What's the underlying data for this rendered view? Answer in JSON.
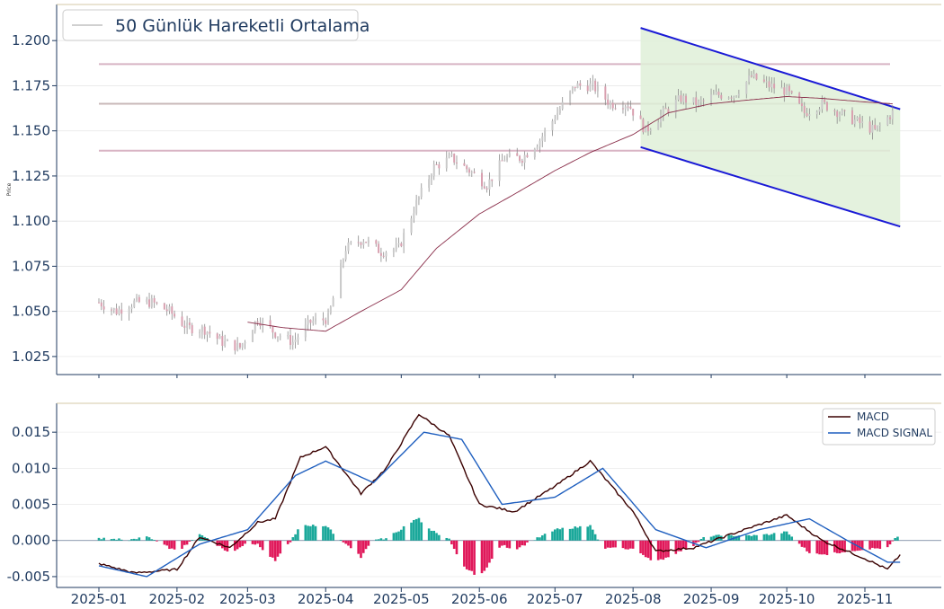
{
  "chart_data": [
    {
      "type": "candlestick",
      "ylabel": "Price",
      "ylim": [
        1.015,
        1.22
      ],
      "yticks": [
        "1.025",
        "1.050",
        "1.075",
        "1.100",
        "1.125",
        "1.150",
        "1.175",
        "1.200"
      ],
      "legend": {
        "label": "50 Günlük Hareketli Ortalama",
        "placement": "top-left"
      },
      "horizontal_levels": [
        1.187,
        1.165,
        1.139
      ],
      "channel": {
        "upper": {
          "start": [
            "2025-08-04",
            1.207
          ],
          "end": [
            "2025-11-15",
            1.162
          ]
        },
        "lower": {
          "start": [
            "2025-08-04",
            1.141
          ],
          "end": [
            "2025-11-15",
            1.097
          ]
        }
      },
      "price_knots": [
        [
          "2025-01-01",
          1.055
        ],
        [
          "2025-01-08",
          1.05
        ],
        [
          "2025-01-15",
          1.055
        ],
        [
          "2025-01-22",
          1.055
        ],
        [
          "2025-01-29",
          1.05
        ],
        [
          "2025-02-05",
          1.041
        ],
        [
          "2025-02-12",
          1.04
        ],
        [
          "2025-02-19",
          1.033
        ],
        [
          "2025-02-26",
          1.03
        ],
        [
          "2025-03-05",
          1.046
        ],
        [
          "2025-03-12",
          1.038
        ],
        [
          "2025-03-19",
          1.033
        ],
        [
          "2025-03-26",
          1.044
        ],
        [
          "2025-04-02",
          1.046
        ],
        [
          "2025-04-09",
          1.085
        ],
        [
          "2025-04-16",
          1.09
        ],
        [
          "2025-04-23",
          1.083
        ],
        [
          "2025-04-30",
          1.085
        ],
        [
          "2025-05-07",
          1.11
        ],
        [
          "2025-05-14",
          1.13
        ],
        [
          "2025-05-21",
          1.135
        ],
        [
          "2025-05-28",
          1.128
        ],
        [
          "2025-06-04",
          1.12
        ],
        [
          "2025-06-11",
          1.135
        ],
        [
          "2025-06-18",
          1.135
        ],
        [
          "2025-06-25",
          1.145
        ],
        [
          "2025-07-02",
          1.16
        ],
        [
          "2025-07-09",
          1.175
        ],
        [
          "2025-07-16",
          1.175
        ],
        [
          "2025-07-23",
          1.165
        ],
        [
          "2025-07-30",
          1.165
        ],
        [
          "2025-08-06",
          1.15
        ],
        [
          "2025-08-13",
          1.16
        ],
        [
          "2025-08-20",
          1.168
        ],
        [
          "2025-08-27",
          1.165
        ],
        [
          "2025-09-03",
          1.17
        ],
        [
          "2025-09-10",
          1.17
        ],
        [
          "2025-09-17",
          1.18
        ],
        [
          "2025-09-24",
          1.175
        ],
        [
          "2025-10-01",
          1.172
        ],
        [
          "2025-10-08",
          1.16
        ],
        [
          "2025-10-15",
          1.165
        ],
        [
          "2025-10-22",
          1.16
        ],
        [
          "2025-10-29",
          1.155
        ],
        [
          "2025-11-05",
          1.15
        ],
        [
          "2025-11-12",
          1.16
        ]
      ],
      "sma50_knots": [
        [
          "2025-03-01",
          1.044
        ],
        [
          "2025-03-15",
          1.041
        ],
        [
          "2025-04-01",
          1.039
        ],
        [
          "2025-04-15",
          1.05
        ],
        [
          "2025-05-01",
          1.062
        ],
        [
          "2025-05-15",
          1.085
        ],
        [
          "2025-06-01",
          1.104
        ],
        [
          "2025-06-15",
          1.115
        ],
        [
          "2025-07-01",
          1.128
        ],
        [
          "2025-07-15",
          1.138
        ],
        [
          "2025-08-01",
          1.148
        ],
        [
          "2025-08-15",
          1.16
        ],
        [
          "2025-09-01",
          1.165
        ],
        [
          "2025-09-15",
          1.167
        ],
        [
          "2025-10-01",
          1.169
        ],
        [
          "2025-10-15",
          1.168
        ],
        [
          "2025-11-01",
          1.166
        ],
        [
          "2025-11-12",
          1.165
        ]
      ]
    },
    {
      "type": "macd",
      "ylim": [
        -0.0065,
        0.019
      ],
      "yticks": [
        "0.015",
        "0.010",
        "0.005",
        "0.000",
        "-0.005"
      ],
      "xticks": [
        "2025-01",
        "2025-02",
        "2025-03",
        "2025-04",
        "2025-05",
        "2025-06",
        "2025-07",
        "2025-08",
        "2025-09",
        "2025-10",
        "2025-11"
      ],
      "legend": {
        "placement": "top-right",
        "entries": [
          {
            "label": "MACD",
            "color": "#3a0000"
          },
          {
            "label": "MACD SIGNAL",
            "color": "#1f5fbf"
          }
        ]
      },
      "macd_knots": [
        [
          "2025-01-01",
          -0.0032
        ],
        [
          "2025-01-15",
          -0.0045
        ],
        [
          "2025-02-01",
          -0.004
        ],
        [
          "2025-02-10",
          0.0005
        ],
        [
          "2025-02-22",
          -0.001
        ],
        [
          "2025-03-05",
          0.0025
        ],
        [
          "2025-03-12",
          0.003
        ],
        [
          "2025-03-22",
          0.0115
        ],
        [
          "2025-04-01",
          0.013
        ],
        [
          "2025-04-15",
          0.0065
        ],
        [
          "2025-04-25",
          0.01
        ],
        [
          "2025-05-08",
          0.0175
        ],
        [
          "2025-05-20",
          0.0145
        ],
        [
          "2025-06-01",
          0.005
        ],
        [
          "2025-06-15",
          0.004
        ],
        [
          "2025-07-01",
          0.0075
        ],
        [
          "2025-07-15",
          0.011
        ],
        [
          "2025-08-01",
          0.004
        ],
        [
          "2025-08-10",
          -0.0015
        ],
        [
          "2025-08-25",
          -0.001
        ],
        [
          "2025-09-10",
          0.001
        ],
        [
          "2025-10-01",
          0.0035
        ],
        [
          "2025-10-15",
          0.0
        ],
        [
          "2025-11-01",
          -0.0025
        ],
        [
          "2025-11-10",
          -0.004
        ],
        [
          "2025-11-15",
          -0.002
        ]
      ],
      "signal_knots": [
        [
          "2025-01-01",
          -0.0035
        ],
        [
          "2025-01-20",
          -0.005
        ],
        [
          "2025-02-10",
          -0.0005
        ],
        [
          "2025-03-01",
          0.0015
        ],
        [
          "2025-03-20",
          0.009
        ],
        [
          "2025-04-01",
          0.011
        ],
        [
          "2025-04-20",
          0.008
        ],
        [
          "2025-05-10",
          0.015
        ],
        [
          "2025-05-25",
          0.014
        ],
        [
          "2025-06-10",
          0.005
        ],
        [
          "2025-07-01",
          0.006
        ],
        [
          "2025-07-20",
          0.01
        ],
        [
          "2025-08-10",
          0.0015
        ],
        [
          "2025-08-30",
          -0.001
        ],
        [
          "2025-09-20",
          0.0015
        ],
        [
          "2025-10-10",
          0.003
        ],
        [
          "2025-10-25",
          0.0
        ],
        [
          "2025-11-10",
          -0.003
        ],
        [
          "2025-11-15",
          -0.003
        ]
      ],
      "colors": {
        "positive_bar": "#1aa89a",
        "negative_bar": "#e0185a"
      }
    }
  ]
}
